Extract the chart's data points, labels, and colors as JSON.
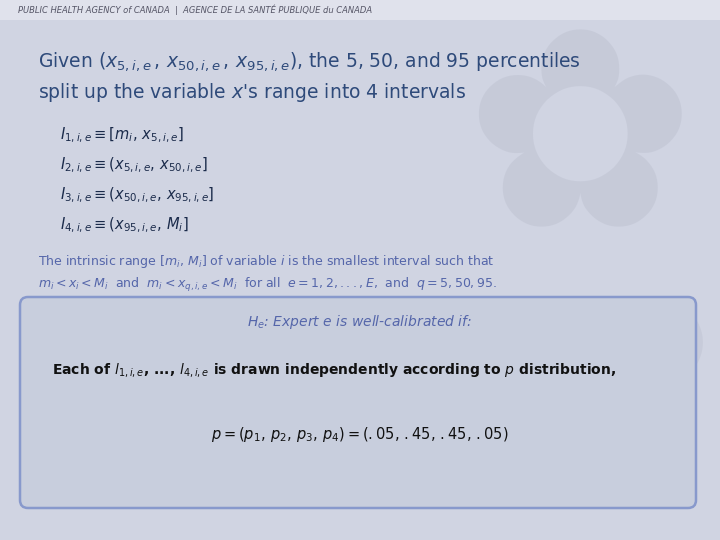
{
  "bg_color": "#d0d4e2",
  "header_bg": "#e0e2ec",
  "header_text": "PUBLIC HEALTH AGENCY of CANADA  |  AGENCE DE LA SANTÉ PUBLIQUE du CANADA",
  "header_color": "#555566",
  "title_color": "#2e4a7a",
  "interval_color": "#1a2a4a",
  "intrinsic_color": "#5566aa",
  "box_bg": "#c8cedd",
  "box_border": "#8899cc",
  "box_title_color": "#5566aa",
  "box_body_color": "#111111",
  "watermark_color": "#bbbfce"
}
